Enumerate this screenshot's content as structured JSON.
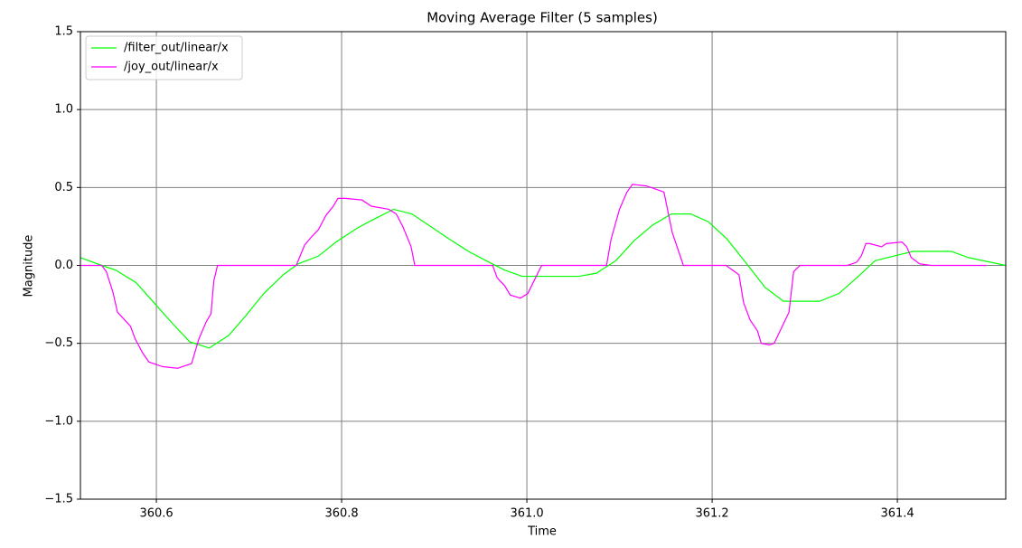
{
  "chart_data": {
    "type": "line",
    "title": "Moving Average Filter (5 samples)",
    "x_label": "Time",
    "y_label": "Magnitude",
    "xlim": [
      360.518,
      361.517
    ],
    "ylim": [
      -1.5,
      1.5
    ],
    "xticks": [
      360.6,
      360.8,
      {
        "value": 361.0,
        "label": "361.0"
      },
      361.2,
      361.4
    ],
    "yticks": [
      {
        "value": -1.5,
        "label": "−1.5"
      },
      {
        "value": -1.0,
        "label": "−1.0"
      },
      {
        "value": -0.5,
        "label": "−0.5"
      },
      {
        "value": 0.0,
        "label": "0.0"
      },
      0.5,
      {
        "value": 1.0,
        "label": "1.0"
      },
      1.5
    ],
    "grid": true,
    "legend": "upper left",
    "series": [
      {
        "name": "/filter_out/linear/x",
        "color": "#00ff00",
        "x": [
          360.518,
          360.541,
          360.556,
          360.578,
          360.599,
          360.617,
          360.636,
          360.657,
          360.678,
          360.697,
          360.716,
          360.737,
          360.753,
          360.775,
          360.794,
          360.817,
          360.836,
          360.856,
          360.876,
          360.896,
          360.916,
          360.937,
          360.956,
          360.976,
          360.995,
          361.016,
          361.056,
          361.075,
          361.096,
          361.116,
          361.136,
          361.156,
          361.177,
          361.196,
          361.216,
          361.236,
          361.257,
          361.277,
          361.316,
          361.337,
          361.356,
          361.376,
          361.396,
          361.417,
          361.458,
          361.477,
          361.517
        ],
        "values": [
          0.05,
          0.0,
          -0.03,
          -0.11,
          -0.25,
          -0.37,
          -0.49,
          -0.53,
          -0.45,
          -0.32,
          -0.18,
          -0.06,
          0.01,
          0.06,
          0.15,
          0.24,
          0.3,
          0.36,
          0.33,
          0.25,
          0.17,
          0.09,
          0.03,
          -0.03,
          -0.07,
          -0.07,
          -0.07,
          -0.05,
          0.03,
          0.16,
          0.26,
          0.33,
          0.33,
          0.28,
          0.17,
          0.02,
          -0.14,
          -0.23,
          -0.23,
          -0.18,
          -0.08,
          0.03,
          0.06,
          0.09,
          0.09,
          0.05,
          0.0
        ]
      },
      {
        "name": "/joy_out/linear/x",
        "color": "#ff00ff",
        "x": [
          360.518,
          360.541,
          360.546,
          360.553,
          360.558,
          360.572,
          360.577,
          360.585,
          360.592,
          360.607,
          360.623,
          360.638,
          360.646,
          360.654,
          360.659,
          360.662,
          360.666,
          360.751,
          360.76,
          360.767,
          360.775,
          360.783,
          360.791,
          360.796,
          360.804,
          360.822,
          360.832,
          360.851,
          360.859,
          360.866,
          360.875,
          360.879,
          360.963,
          360.968,
          360.976,
          360.982,
          360.993,
          361.001,
          361.016,
          361.086,
          361.091,
          361.1,
          361.108,
          361.114,
          361.129,
          361.139,
          361.148,
          361.157,
          361.169,
          361.215,
          361.229,
          361.234,
          361.241,
          361.249,
          361.253,
          361.262,
          361.267,
          361.283,
          361.288,
          361.295,
          361.346,
          361.356,
          361.361,
          361.366,
          361.37,
          361.383,
          361.388,
          361.405,
          361.41,
          361.415,
          361.424,
          361.436,
          361.496
        ],
        "values": [
          0,
          0,
          -0.04,
          -0.17,
          -0.3,
          -0.39,
          -0.47,
          -0.56,
          -0.62,
          -0.65,
          -0.66,
          -0.63,
          -0.47,
          -0.36,
          -0.31,
          -0.1,
          0,
          0,
          0.13,
          0.18,
          0.23,
          0.32,
          0.38,
          0.43,
          0.43,
          0.42,
          0.38,
          0.36,
          0.33,
          0.25,
          0.12,
          0,
          0,
          -0.08,
          -0.13,
          -0.19,
          -0.21,
          -0.18,
          0,
          0,
          0.17,
          0.36,
          0.47,
          0.52,
          0.51,
          0.49,
          0.47,
          0.21,
          0,
          0,
          -0.06,
          -0.24,
          -0.35,
          -0.42,
          -0.5,
          -0.51,
          -0.5,
          -0.3,
          -0.04,
          0,
          0,
          0.02,
          0.06,
          0.14,
          0.14,
          0.12,
          0.14,
          0.15,
          0.12,
          0.05,
          0.01,
          0,
          0
        ]
      }
    ]
  }
}
